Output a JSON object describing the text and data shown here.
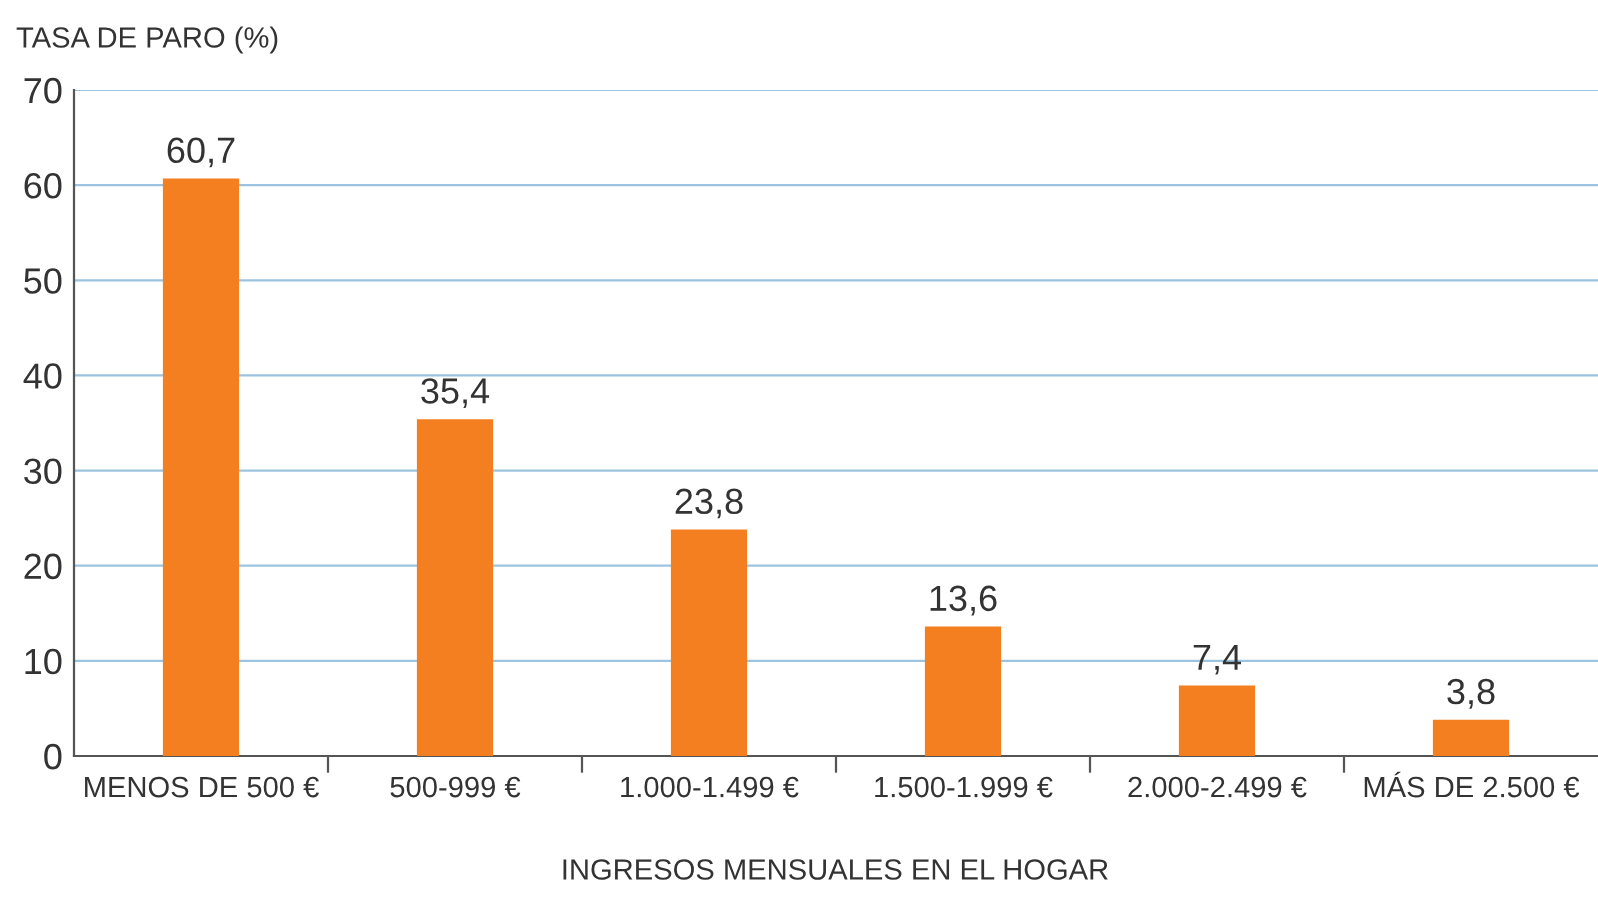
{
  "chart_data": {
    "type": "bar",
    "ylabel": "TASA DE PARO (%)",
    "xlabel": "INGRESOS MENSUALES EN EL HOGAR",
    "categories": [
      "MENOS DE 500 €",
      "500-999 €",
      "1.000-1.499 €",
      "1.500-1.999 €",
      "2.000-2.499 €",
      "MÁS DE 2.500 €"
    ],
    "values": [
      60.7,
      35.4,
      23.8,
      13.6,
      7.4,
      3.8
    ],
    "value_labels": [
      "60,7",
      "35,4",
      "23,8",
      "13,6",
      "7,4",
      "3,8"
    ],
    "color": "#f47f20",
    "ylim": [
      0,
      70
    ],
    "yticks": [
      0,
      10,
      20,
      30,
      40,
      50,
      60,
      70
    ],
    "grid": "y"
  }
}
